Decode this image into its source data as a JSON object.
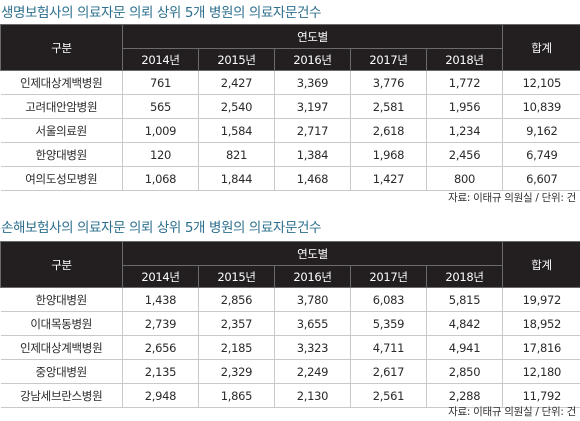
{
  "tables": [
    {
      "title": "생명보험사의 의료자문 의뢰 상위 5개 병원의 의료자문건수",
      "header": {
        "category": "구분",
        "year_group": "연도별",
        "years": [
          "2014년",
          "2015년",
          "2016년",
          "2017년",
          "2018년"
        ],
        "total": "합계"
      },
      "rows": [
        {
          "hospital": "인제대상계백병원",
          "values": [
            "761",
            "2,427",
            "3,369",
            "3,776",
            "1,772"
          ],
          "total": "12,105"
        },
        {
          "hospital": "고려대안암병원",
          "values": [
            "565",
            "2,540",
            "3,197",
            "2,581",
            "1,956"
          ],
          "total": "10,839"
        },
        {
          "hospital": "서울의료원",
          "values": [
            "1,009",
            "1,584",
            "2,717",
            "2,618",
            "1,234"
          ],
          "total": "9,162"
        },
        {
          "hospital": "한양대병원",
          "values": [
            "120",
            "821",
            "1,384",
            "1,968",
            "2,456"
          ],
          "total": "6,749"
        },
        {
          "hospital": "여의도성모병원",
          "values": [
            "1,068",
            "1,844",
            "1,468",
            "1,427",
            "800"
          ],
          "total": "6,607"
        }
      ],
      "source": "자료: 이태규 의원실 / 단위: 건"
    },
    {
      "title": "손해보험사의 의료자문 의뢰 상위 5개 병원의 의료자문건수",
      "header": {
        "category": "구분",
        "year_group": "연도별",
        "years": [
          "2014년",
          "2015년",
          "2016년",
          "2017년",
          "2018년"
        ],
        "total": "합계"
      },
      "rows": [
        {
          "hospital": "한양대병원",
          "values": [
            "1,438",
            "2,856",
            "3,780",
            "6,083",
            "5,815"
          ],
          "total": "19,972"
        },
        {
          "hospital": "이대목동병원",
          "values": [
            "2,739",
            "2,357",
            "3,655",
            "5,359",
            "4,842"
          ],
          "total": "18,952"
        },
        {
          "hospital": "인제대상계백병원",
          "values": [
            "2,656",
            "2,185",
            "3,323",
            "4,711",
            "4,941"
          ],
          "total": "17,816"
        },
        {
          "hospital": "중앙대병원",
          "values": [
            "2,135",
            "2,329",
            "2,249",
            "2,617",
            "2,850"
          ],
          "total": "12,180"
        },
        {
          "hospital": "강남세브란스병원",
          "values": [
            "2,948",
            "1,865",
            "2,130",
            "2,561",
            "2,288"
          ],
          "total": "11,792"
        }
      ],
      "source": "자료: 이태규 의원실 / 단위: 건"
    }
  ],
  "colors": {
    "title": "#2c6f8e",
    "header_bg": "#231f20",
    "header_text": "#ffffff",
    "row_border": "#c9c9c9"
  }
}
